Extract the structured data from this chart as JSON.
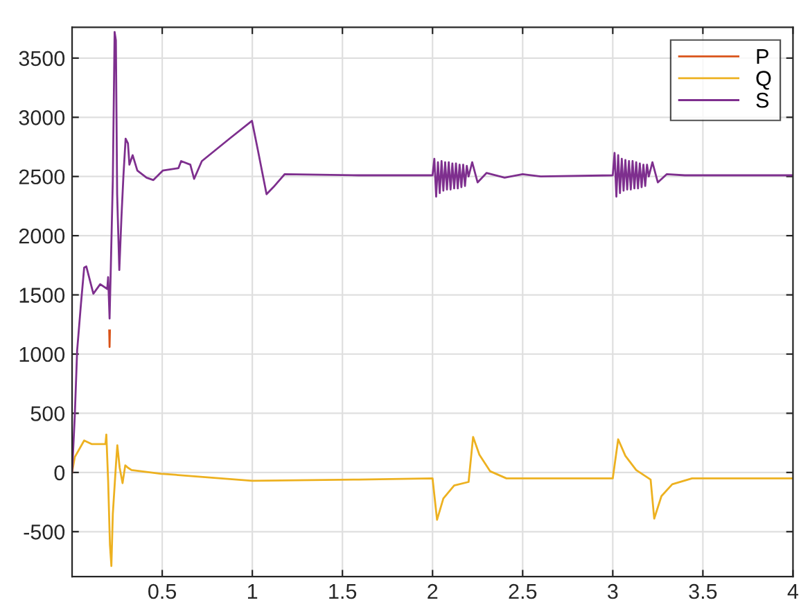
{
  "chart_data": {
    "type": "line",
    "xlim": [
      0,
      4
    ],
    "ylim": [
      -880,
      3760
    ],
    "xticks": [
      0.5,
      1,
      1.5,
      2,
      2.5,
      3,
      3.5,
      4
    ],
    "yticks": [
      -500,
      0,
      500,
      1000,
      1500,
      2000,
      2500,
      3000,
      3500
    ],
    "grid": true,
    "legend": "top right",
    "line_style": "solid",
    "marker": "none",
    "series": [
      {
        "name": "P",
        "color": "#d95319",
        "x": [
          0.206,
          0.208,
          0.21
        ],
        "values": [
          1200,
          1060,
          1200
        ]
      },
      {
        "name": "Q",
        "color": "#edb120",
        "x": [
          0,
          0.015,
          0.067,
          0.108,
          0.185,
          0.19,
          0.2,
          0.21,
          0.218,
          0.226,
          0.244,
          0.251,
          0.264,
          0.28,
          0.295,
          0.31,
          0.33,
          0.49,
          1.0,
          1.59,
          2.0,
          2.025,
          2.06,
          2.12,
          2.2,
          2.225,
          2.26,
          2.32,
          2.41,
          3.0,
          3.03,
          3.07,
          3.13,
          3.21,
          3.23,
          3.27,
          3.33,
          3.44,
          4.0
        ],
        "values": [
          0,
          130,
          270,
          240,
          240,
          320,
          -70,
          -610,
          -790,
          -350,
          80,
          230,
          40,
          -90,
          60,
          40,
          20,
          -10,
          -70,
          -60,
          -50,
          -400,
          -220,
          -110,
          -80,
          300,
          150,
          10,
          -50,
          -50,
          280,
          140,
          20,
          -60,
          -390,
          -200,
          -100,
          -50,
          -50
        ]
      },
      {
        "name": "S",
        "color": "#7e2f8e",
        "x": [
          0,
          0.015,
          0.028,
          0.049,
          0.067,
          0.079,
          0.118,
          0.156,
          0.195,
          0.2,
          0.208,
          0.215,
          0.226,
          0.236,
          0.243,
          0.25,
          0.262,
          0.274,
          0.285,
          0.297,
          0.31,
          0.318,
          0.336,
          0.362,
          0.413,
          0.451,
          0.503,
          0.59,
          0.605,
          0.656,
          0.677,
          0.72,
          0.874,
          0.998,
          1.03,
          1.079,
          1.117,
          1.18,
          1.59,
          2.0,
          2.01,
          2.02,
          2.03,
          2.04,
          2.05,
          2.06,
          2.07,
          2.08,
          2.09,
          2.1,
          2.11,
          2.12,
          2.13,
          2.14,
          2.15,
          2.16,
          2.17,
          2.18,
          2.19,
          2.2,
          2.22,
          2.25,
          2.3,
          2.4,
          2.5,
          2.6,
          3.0,
          3.01,
          3.02,
          3.03,
          3.04,
          3.05,
          3.06,
          3.07,
          3.08,
          3.09,
          3.1,
          3.11,
          3.12,
          3.13,
          3.14,
          3.15,
          3.16,
          3.17,
          3.18,
          3.19,
          3.2,
          3.22,
          3.25,
          3.3,
          3.4,
          4.0
        ],
        "values": [
          0,
          480,
          1030,
          1420,
          1730,
          1740,
          1510,
          1590,
          1550,
          1650,
          1300,
          1740,
          2470,
          3720,
          3650,
          2350,
          1710,
          2160,
          2510,
          2820,
          2780,
          2600,
          2680,
          2550,
          2490,
          2470,
          2550,
          2570,
          2630,
          2600,
          2480,
          2630,
          2820,
          2970,
          2730,
          2350,
          2410,
          2520,
          2510,
          2510,
          2650,
          2330,
          2620,
          2360,
          2630,
          2380,
          2620,
          2390,
          2620,
          2390,
          2610,
          2400,
          2610,
          2400,
          2600,
          2410,
          2600,
          2420,
          2590,
          2500,
          2620,
          2450,
          2530,
          2490,
          2520,
          2500,
          2510,
          2700,
          2330,
          2680,
          2360,
          2650,
          2380,
          2640,
          2390,
          2630,
          2390,
          2630,
          2400,
          2620,
          2400,
          2610,
          2410,
          2600,
          2420,
          2600,
          2500,
          2620,
          2450,
          2520,
          2510,
          2510
        ]
      }
    ]
  }
}
